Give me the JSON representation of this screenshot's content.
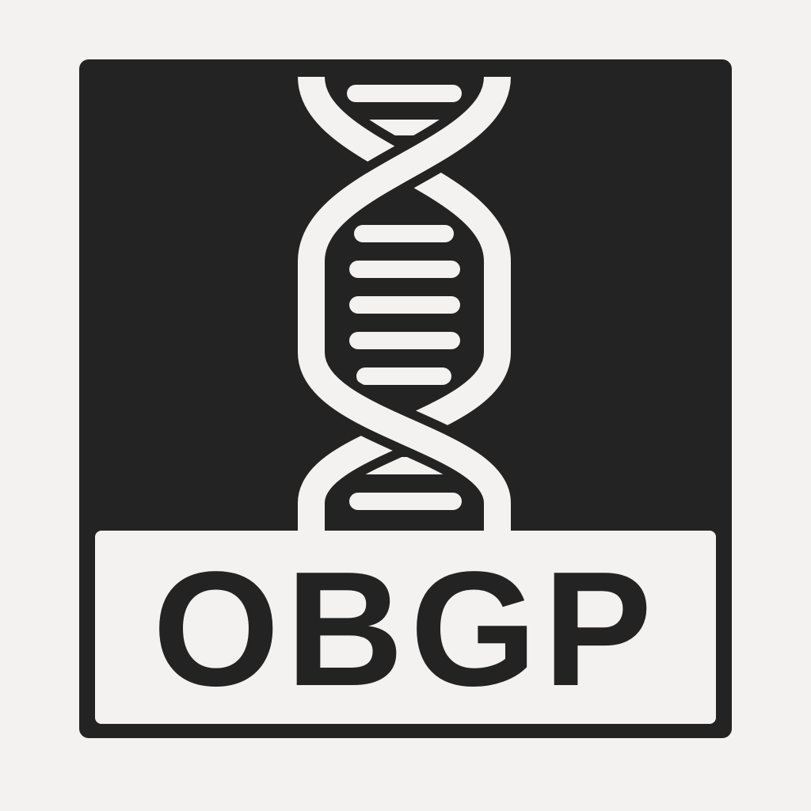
{
  "logo": {
    "text": "OBGP",
    "icon": "dna-double-helix-icon",
    "colors": {
      "background": "#f3f2f0",
      "frame": "#232323",
      "helix": "#f3f2f0",
      "text": "#232323"
    }
  }
}
